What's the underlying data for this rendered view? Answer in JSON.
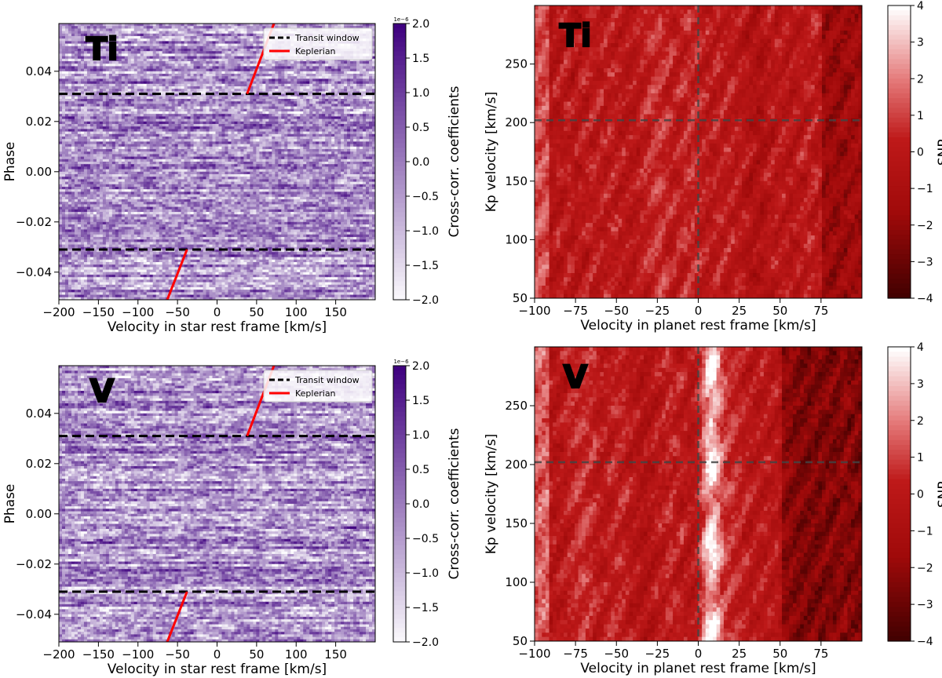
{
  "chart_data": [
    {
      "type": "heatmap",
      "id": "ccf-ti",
      "species_label": "Ti",
      "xlabel": "Velocity in star rest frame [km/s]",
      "ylabel": "Phase",
      "xlim": [
        -200,
        200
      ],
      "ylim": [
        -0.051,
        0.059
      ],
      "xticks": [
        -200,
        -150,
        -100,
        -50,
        0,
        50,
        100,
        150
      ],
      "yticks": [
        -0.04,
        -0.02,
        0.0,
        0.02,
        0.04
      ],
      "ytick_labels": [
        "−0.04",
        "−0.02",
        "0.00",
        "0.02",
        "0.04"
      ],
      "colormap": "Purples",
      "colorbar": {
        "label": "Cross-corr. coefficients",
        "range": [
          -2.0,
          2.0
        ],
        "ticks": [
          -2.0,
          -1.5,
          -1.0,
          -0.5,
          0.0,
          0.5,
          1.0,
          1.5,
          2.0
        ],
        "tick_labels": [
          "−2.0",
          "−1.5",
          "−1.0",
          "−0.5",
          "0.0",
          "0.5",
          "1.0",
          "1.5",
          "2.0"
        ],
        "exponent": "1e−6"
      },
      "transit_window": [
        -0.031,
        0.031
      ],
      "keplerian_segments": [
        {
          "phase": [
            -0.051,
            -0.031
          ],
          "velocity": [
            -63,
            -38
          ]
        },
        {
          "phase": [
            0.031,
            0.059
          ],
          "velocity": [
            38,
            72
          ]
        }
      ],
      "legend": {
        "position": "upper right",
        "entries": [
          "Transit window",
          "Keplerian"
        ]
      },
      "colors": {
        "transit_window": "#000000",
        "keplerian": "#ff0000"
      },
      "seed": 11
    },
    {
      "type": "heatmap",
      "id": "kp-ti",
      "species_label": "Ti",
      "xlabel": "Velocity in planet rest frame [km/s]",
      "ylabel": "Kp velocity [km/s]",
      "xlim": [
        -100,
        100
      ],
      "ylim": [
        50,
        300
      ],
      "xticks": [
        -100,
        -75,
        -50,
        -25,
        0,
        25,
        50,
        75
      ],
      "yticks": [
        50,
        100,
        150,
        200,
        250
      ],
      "colormap": "Reds_r",
      "colorbar": {
        "label": "SNR",
        "range": [
          -4,
          4
        ],
        "ticks": [
          -4,
          -3,
          -2,
          -1,
          0,
          1,
          2,
          3,
          4
        ],
        "tick_labels": [
          "−4",
          "−3",
          "−2",
          "−1",
          "0",
          "1",
          "2",
          "3",
          "4"
        ]
      },
      "crosshair": {
        "velocity": 0,
        "kp": 202
      },
      "signal": null,
      "seed": 23
    },
    {
      "type": "heatmap",
      "id": "ccf-v",
      "species_label": "V",
      "xlabel": "Velocity in star rest frame [km/s]",
      "ylabel": "Phase",
      "xlim": [
        -200,
        200
      ],
      "ylim": [
        -0.051,
        0.059
      ],
      "xticks": [
        -200,
        -150,
        -100,
        -50,
        0,
        50,
        100,
        150
      ],
      "yticks": [
        -0.04,
        -0.02,
        0.0,
        0.02,
        0.04
      ],
      "ytick_labels": [
        "−0.04",
        "−0.02",
        "0.00",
        "0.02",
        "0.04"
      ],
      "colormap": "Purples",
      "colorbar": {
        "label": "Cross-corr. coefficients",
        "range": [
          -2.0,
          2.0
        ],
        "ticks": [
          -2.0,
          -1.5,
          -1.0,
          -0.5,
          0.0,
          0.5,
          1.0,
          1.5,
          2.0
        ],
        "tick_labels": [
          "−2.0",
          "−1.5",
          "−1.0",
          "−0.5",
          "0.0",
          "0.5",
          "1.0",
          "1.5",
          "2.0"
        ],
        "exponent": "1e−6"
      },
      "transit_window": [
        -0.031,
        0.031
      ],
      "keplerian_segments": [
        {
          "phase": [
            -0.051,
            -0.031
          ],
          "velocity": [
            -63,
            -38
          ]
        },
        {
          "phase": [
            0.031,
            0.059
          ],
          "velocity": [
            38,
            72
          ]
        }
      ],
      "legend": {
        "position": "upper right",
        "entries": [
          "Transit window",
          "Keplerian"
        ]
      },
      "colors": {
        "transit_window": "#000000",
        "keplerian": "#ff0000"
      },
      "seed": 37
    },
    {
      "type": "heatmap",
      "id": "kp-v",
      "species_label": "V",
      "xlabel": "Velocity in planet rest frame [km/s]",
      "ylabel": "Kp velocity [km/s]",
      "xlim": [
        -100,
        100
      ],
      "ylim": [
        50,
        300
      ],
      "xticks": [
        -100,
        -75,
        -50,
        -25,
        0,
        25,
        50,
        75
      ],
      "yticks": [
        50,
        100,
        150,
        200,
        250
      ],
      "colormap": "Reds_r",
      "colorbar": {
        "label": "SNR",
        "range": [
          -4,
          4
        ],
        "ticks": [
          -4,
          -3,
          -2,
          -1,
          0,
          1,
          2,
          3,
          4
        ],
        "tick_labels": [
          "−4",
          "−3",
          "−2",
          "−1",
          "0",
          "1",
          "2",
          "3",
          "4"
        ]
      },
      "crosshair": {
        "velocity": 0,
        "kp": 202
      },
      "signal": {
        "velocity": 8,
        "width": 6,
        "peak_snr": 4,
        "dark_region_from": 50
      },
      "seed": 53
    }
  ]
}
